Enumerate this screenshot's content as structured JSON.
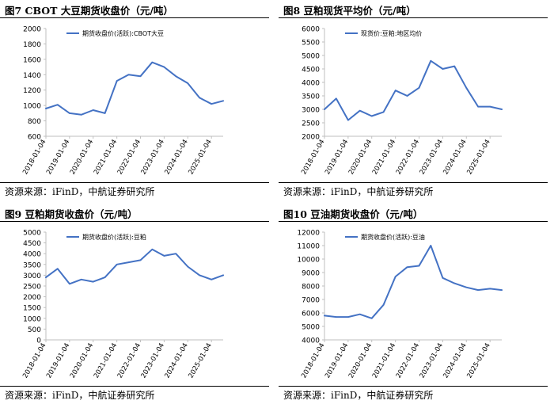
{
  "colors": {
    "series": "#4472c4",
    "axis": "#bfbfbf",
    "text": "#000000"
  },
  "panels": [
    {
      "title": "图7  CBOT 大豆期货收盘价（元/吨）",
      "source": "资源来源：iFinD，中航证券研究所"
    },
    {
      "title": "图8  豆粕现货平均价（元/吨）",
      "source": "资源来源：iFinD，中航证券研究所"
    },
    {
      "title": "图9  豆粕期货收盘价（元/吨）",
      "source": "资源来源：iFinD，中航证券研究所"
    },
    {
      "title": "图10  豆油期货收盘价（元/吨）",
      "source": "资源来源：iFinD，中航证券研究所"
    }
  ],
  "chart_data": [
    {
      "type": "line",
      "legend": "期货收盘价(活跃):CBOT大豆",
      "x": [
        "2018-01-04",
        "2018-07-04",
        "2019-01-04",
        "2019-07-04",
        "2020-01-04",
        "2020-07-04",
        "2021-01-04",
        "2021-07-04",
        "2022-01-04",
        "2022-07-04",
        "2023-01-04",
        "2023-07-04",
        "2024-01-04",
        "2024-07-04",
        "2025-01-04",
        "2025-07-04"
      ],
      "y": [
        960,
        1010,
        900,
        880,
        940,
        900,
        1320,
        1400,
        1380,
        1560,
        1500,
        1380,
        1290,
        1100,
        1020,
        1060
      ],
      "xticks": [
        "2018-01-04",
        "2019-01-04",
        "2020-01-04",
        "2021-01-04",
        "2022-01-04",
        "2023-01-04",
        "2024-01-04",
        "2025-01-04"
      ],
      "yticks": [
        600,
        800,
        1000,
        1200,
        1400,
        1600,
        1800,
        2000
      ],
      "ylim": [
        600,
        2000
      ]
    },
    {
      "type": "line",
      "legend": "现货价:豆粕:地区均价",
      "x": [
        "2018-01-04",
        "2018-07-04",
        "2019-01-04",
        "2019-07-04",
        "2020-01-04",
        "2020-07-04",
        "2021-01-04",
        "2021-07-04",
        "2022-01-04",
        "2022-07-04",
        "2023-01-04",
        "2023-07-04",
        "2024-01-04",
        "2024-07-04",
        "2025-01-04",
        "2025-07-04"
      ],
      "y": [
        3000,
        3400,
        2600,
        2950,
        2750,
        2900,
        3700,
        3500,
        3800,
        4800,
        4500,
        4600,
        3800,
        3100,
        3100,
        3000
      ],
      "xticks": [
        "2018-01-04",
        "2019-01-04",
        "2020-01-04",
        "2021-01-04",
        "2022-01-04",
        "2023-01-04",
        "2024-01-04",
        "2025-01-04"
      ],
      "yticks": [
        2000,
        2500,
        3000,
        3500,
        4000,
        4500,
        5000,
        5500,
        6000
      ],
      "ylim": [
        2000,
        6000
      ]
    },
    {
      "type": "line",
      "legend": "期货收盘价(活跃):豆粕",
      "x": [
        "2018-01-04",
        "2018-07-04",
        "2019-01-04",
        "2019-07-04",
        "2020-01-04",
        "2020-07-04",
        "2021-01-04",
        "2021-07-04",
        "2022-01-04",
        "2022-07-04",
        "2023-01-04",
        "2023-07-04",
        "2024-01-04",
        "2024-07-04",
        "2025-01-04",
        "2025-07-04"
      ],
      "y": [
        2900,
        3300,
        2600,
        2800,
        2700,
        2900,
        3500,
        3600,
        3700,
        4200,
        3900,
        4000,
        3400,
        3000,
        2800,
        3000
      ],
      "xticks": [
        "2018-01-04",
        "2019-01-04",
        "2020-01-04",
        "2021-01-04",
        "2022-01-04",
        "2023-01-04",
        "2024-01-04",
        "2025-01-04"
      ],
      "yticks": [
        0,
        500,
        1000,
        1500,
        2000,
        2500,
        3000,
        3500,
        4000,
        4500,
        5000
      ],
      "ylim": [
        0,
        5000
      ]
    },
    {
      "type": "line",
      "legend": "期货收盘价(活跃):豆油",
      "x": [
        "2018-01-04",
        "2018-07-04",
        "2019-01-04",
        "2019-07-04",
        "2020-01-04",
        "2020-07-04",
        "2021-01-04",
        "2021-07-04",
        "2022-01-04",
        "2022-07-04",
        "2023-01-04",
        "2023-07-04",
        "2024-01-04",
        "2024-07-04",
        "2025-01-04",
        "2025-07-04"
      ],
      "y": [
        5800,
        5700,
        5700,
        5900,
        5600,
        6600,
        8700,
        9400,
        9500,
        11000,
        8600,
        8200,
        7900,
        7700,
        7800,
        7700
      ],
      "xticks": [
        "2018-01-04",
        "2019-01-04",
        "2020-01-04",
        "2021-01-04",
        "2022-01-04",
        "2023-01-04",
        "2024-01-04",
        "2025-01-04"
      ],
      "yticks": [
        4000,
        5000,
        6000,
        7000,
        8000,
        9000,
        10000,
        11000,
        12000
      ],
      "ylim": [
        4000,
        12000
      ]
    }
  ]
}
